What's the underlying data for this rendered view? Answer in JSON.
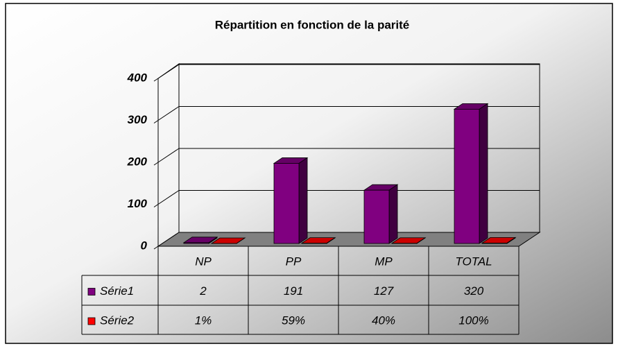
{
  "chart_data": {
    "type": "bar",
    "title": "Répartition en fonction de la parité",
    "categories": [
      "NP",
      "PP",
      "MP",
      "TOTAL"
    ],
    "series": [
      {
        "name": "Série1",
        "color": "#800080",
        "values": [
          2,
          191,
          127,
          320
        ]
      },
      {
        "name": "Série2",
        "color": "#ff0000",
        "values": [
          0.01,
          0.59,
          0.4,
          1
        ],
        "value_labels": [
          "1%",
          "59%",
          "40%",
          "100%"
        ]
      }
    ],
    "ylim": [
      0,
      400
    ],
    "yticks": [
      0,
      100,
      200,
      300,
      400
    ],
    "grid": true
  }
}
